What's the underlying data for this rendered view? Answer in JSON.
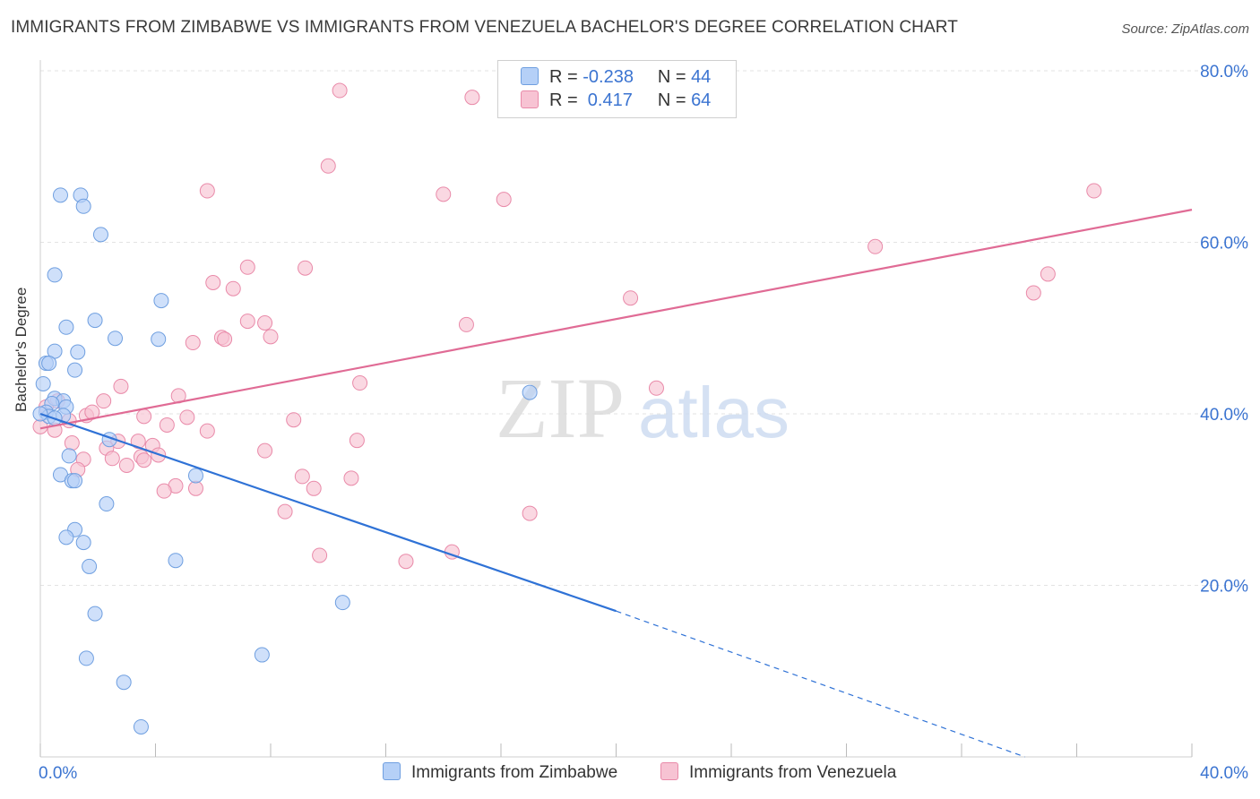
{
  "title": "IMMIGRANTS FROM ZIMBABWE VS IMMIGRANTS FROM VENEZUELA BACHELOR'S DEGREE CORRELATION CHART",
  "source": "Source: ZipAtlas.com",
  "watermark": {
    "zip": "ZIP",
    "atlas": "atlas"
  },
  "legend_stats": [
    {
      "r_label": "R =",
      "r_value": "-0.238",
      "n_label": "N =",
      "n_value": "44"
    },
    {
      "r_label": "R =",
      "r_value": " 0.417",
      "n_label": "N =",
      "n_value": "64"
    }
  ],
  "colors": {
    "zimbabwe_fill": "#b5d0f7",
    "zimbabwe_stroke": "#6f9fe0",
    "zimbabwe_line": "#2f72d6",
    "venezuela_fill": "#f7c3d3",
    "venezuela_stroke": "#e98aa9",
    "venezuela_line": "#e06b95",
    "tick_label": "#3b74d1",
    "grid": "#e3e3e3"
  },
  "chart_data": {
    "type": "scatter",
    "title": "IMMIGRANTS FROM ZIMBABWE VS IMMIGRANTS FROM VENEZUELA BACHELOR'S DEGREE CORRELATION CHART",
    "xlabel": "",
    "ylabel": "Bachelor's Degree",
    "xlim": [
      0,
      40
    ],
    "ylim": [
      0,
      80
    ],
    "x_tick_labels": [
      "0.0%",
      "40.0%"
    ],
    "y_tick_labels": [
      "20.0%",
      "40.0%",
      "60.0%",
      "80.0%"
    ],
    "y_ticks": [
      20,
      40,
      60,
      80
    ],
    "grid": true,
    "legend_position": "bottom",
    "series": [
      {
        "name": "Immigrants from Zimbabwe",
        "points": [
          [
            0.7,
            65.5
          ],
          [
            1.4,
            65.5
          ],
          [
            1.5,
            64.2
          ],
          [
            2.1,
            60.9
          ],
          [
            0.5,
            56.2
          ],
          [
            4.2,
            53.2
          ],
          [
            1.9,
            50.9
          ],
          [
            0.9,
            50.1
          ],
          [
            2.6,
            48.8
          ],
          [
            4.1,
            48.7
          ],
          [
            0.5,
            47.3
          ],
          [
            1.3,
            47.2
          ],
          [
            0.2,
            45.9
          ],
          [
            0.3,
            45.9
          ],
          [
            1.2,
            45.1
          ],
          [
            0.1,
            43.5
          ],
          [
            0.5,
            41.8
          ],
          [
            0.8,
            41.5
          ],
          [
            0.4,
            41.2
          ],
          [
            0.9,
            40.8
          ],
          [
            0.2,
            40.2
          ],
          [
            0.3,
            39.7
          ],
          [
            0.8,
            39.8
          ],
          [
            0.5,
            39.5
          ],
          [
            2.4,
            37.0
          ],
          [
            1.0,
            35.1
          ],
          [
            0.7,
            32.9
          ],
          [
            1.1,
            32.2
          ],
          [
            1.2,
            32.2
          ],
          [
            5.4,
            32.8
          ],
          [
            17.0,
            42.5
          ],
          [
            2.3,
            29.5
          ],
          [
            1.2,
            26.5
          ],
          [
            0.9,
            25.6
          ],
          [
            1.5,
            25.0
          ],
          [
            4.7,
            22.9
          ],
          [
            1.7,
            22.2
          ],
          [
            10.5,
            18.0
          ],
          [
            1.9,
            16.7
          ],
          [
            1.6,
            11.5
          ],
          [
            7.7,
            11.9
          ],
          [
            2.9,
            8.7
          ],
          [
            3.5,
            3.5
          ],
          [
            0.0,
            40.0
          ]
        ]
      },
      {
        "name": "Immigrants from Venezuela",
        "points": [
          [
            10.4,
            77.7
          ],
          [
            15.0,
            76.9
          ],
          [
            10.0,
            68.9
          ],
          [
            5.8,
            66.0
          ],
          [
            14.0,
            65.6
          ],
          [
            16.1,
            65.0
          ],
          [
            36.6,
            66.0
          ],
          [
            29.0,
            59.5
          ],
          [
            7.2,
            57.1
          ],
          [
            9.2,
            57.0
          ],
          [
            35.0,
            56.3
          ],
          [
            6.0,
            55.3
          ],
          [
            6.7,
            54.6
          ],
          [
            34.5,
            54.1
          ],
          [
            20.5,
            53.5
          ],
          [
            7.2,
            50.8
          ],
          [
            7.8,
            50.6
          ],
          [
            14.8,
            50.4
          ],
          [
            8.0,
            49.0
          ],
          [
            6.3,
            48.9
          ],
          [
            6.4,
            48.7
          ],
          [
            5.3,
            48.3
          ],
          [
            11.1,
            43.6
          ],
          [
            21.4,
            43.0
          ],
          [
            2.8,
            43.2
          ],
          [
            4.8,
            42.1
          ],
          [
            0.6,
            41.5
          ],
          [
            2.2,
            41.5
          ],
          [
            1.6,
            39.8
          ],
          [
            1.8,
            40.2
          ],
          [
            3.6,
            39.7
          ],
          [
            5.1,
            39.6
          ],
          [
            8.8,
            39.3
          ],
          [
            4.4,
            38.7
          ],
          [
            5.8,
            38.0
          ],
          [
            0.0,
            38.5
          ],
          [
            0.5,
            38.1
          ],
          [
            1.1,
            36.6
          ],
          [
            2.7,
            36.8
          ],
          [
            3.4,
            36.8
          ],
          [
            11.0,
            36.9
          ],
          [
            2.3,
            36.0
          ],
          [
            3.9,
            36.3
          ],
          [
            7.8,
            35.7
          ],
          [
            2.5,
            34.8
          ],
          [
            3.5,
            35.0
          ],
          [
            4.1,
            35.2
          ],
          [
            1.5,
            34.7
          ],
          [
            3.6,
            34.6
          ],
          [
            3.0,
            34.0
          ],
          [
            1.3,
            33.5
          ],
          [
            9.1,
            32.7
          ],
          [
            10.8,
            32.5
          ],
          [
            4.7,
            31.6
          ],
          [
            5.4,
            31.3
          ],
          [
            4.3,
            31.0
          ],
          [
            9.5,
            31.3
          ],
          [
            8.5,
            28.6
          ],
          [
            17.0,
            28.4
          ],
          [
            14.3,
            23.9
          ],
          [
            9.7,
            23.5
          ],
          [
            12.7,
            22.8
          ],
          [
            0.2,
            40.8
          ],
          [
            1.0,
            39.2
          ]
        ]
      }
    ],
    "trend_lines": [
      {
        "series": "Immigrants from Zimbabwe",
        "x": [
          0,
          20
        ],
        "y": [
          40.0,
          17.0
        ],
        "dashed_extension": {
          "x": [
            20,
            34.2
          ],
          "y": [
            17.0,
            0.0
          ]
        }
      },
      {
        "series": "Immigrants from Venezuela",
        "x": [
          0,
          40
        ],
        "y": [
          38.3,
          63.8
        ]
      }
    ]
  }
}
